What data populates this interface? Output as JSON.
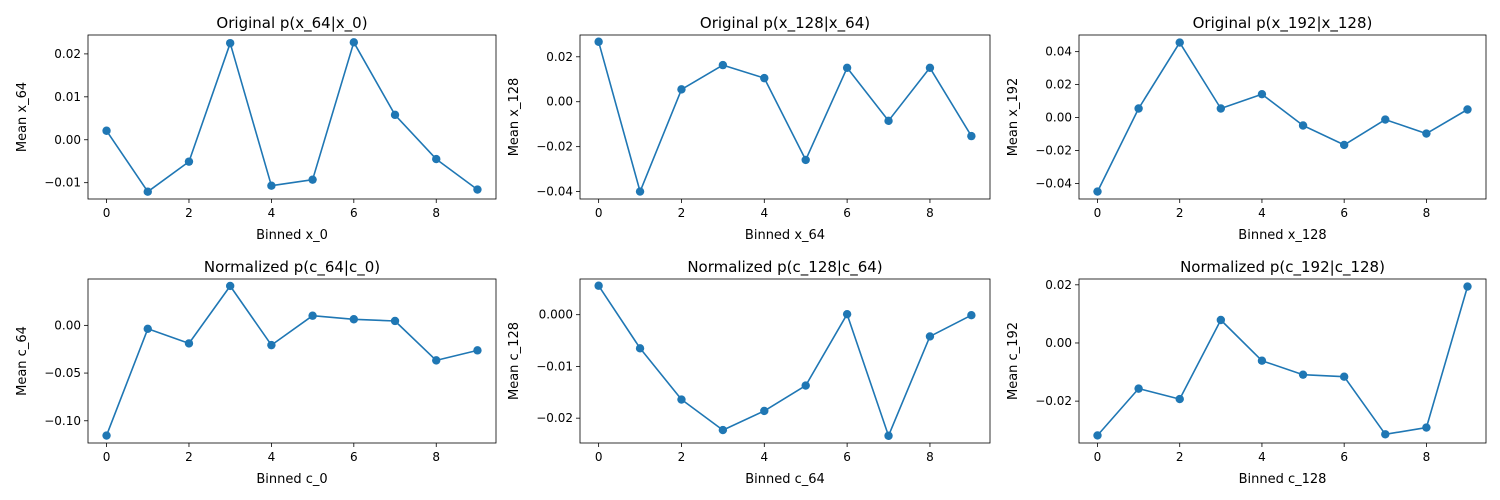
{
  "figure": {
    "color": "#1f77b4"
  },
  "chart_data": [
    {
      "type": "line",
      "title": "Original p(x_64|x_0)",
      "xlabel": "Binned x_0",
      "ylabel": "Mean x_64",
      "x": [
        0,
        1,
        2,
        3,
        4,
        5,
        6,
        7,
        8,
        9
      ],
      "values": [
        0.0021,
        -0.0121,
        -0.0051,
        0.0225,
        -0.0107,
        -0.0093,
        0.0227,
        0.0058,
        -0.0045,
        -0.0116
      ],
      "xlim": [
        -0.45,
        9.45
      ],
      "ylim": [
        -0.0138,
        0.0244
      ],
      "xticks": [
        0,
        2,
        4,
        6,
        8
      ],
      "xtick_labels": [
        "0",
        "2",
        "4",
        "6",
        "8"
      ],
      "yticks": [
        -0.01,
        0.0,
        0.01,
        0.02
      ],
      "ytick_labels": [
        "−0.01",
        "0.00",
        "0.01",
        "0.02"
      ],
      "grid": false
    },
    {
      "type": "line",
      "title": "Original p(x_128|x_64)",
      "xlabel": "Binned x_64",
      "ylabel": "Mean x_128",
      "x": [
        0,
        1,
        2,
        3,
        4,
        5,
        6,
        7,
        8,
        9
      ],
      "values": [
        0.0267,
        -0.04,
        0.0055,
        0.0163,
        0.0105,
        -0.0259,
        0.0151,
        -0.0085,
        0.0151,
        -0.0153
      ],
      "xlim": [
        -0.45,
        9.45
      ],
      "ylim": [
        -0.0433,
        0.0297
      ],
      "xticks": [
        0,
        2,
        4,
        6,
        8
      ],
      "xtick_labels": [
        "0",
        "2",
        "4",
        "6",
        "8"
      ],
      "yticks": [
        -0.04,
        -0.02,
        0.0,
        0.02
      ],
      "ytick_labels": [
        "−0.04",
        "−0.02",
        "0.00",
        "0.02"
      ],
      "grid": false
    },
    {
      "type": "line",
      "title": "Original p(x_192|x_128)",
      "xlabel": "Binned x_128",
      "ylabel": "Mean x_192",
      "x": [
        0,
        1,
        2,
        3,
        4,
        5,
        6,
        7,
        8,
        9
      ],
      "values": [
        -0.0449,
        0.0055,
        0.0455,
        0.0055,
        0.0142,
        -0.0048,
        -0.0166,
        -0.0012,
        -0.0097,
        0.0049
      ],
      "xlim": [
        -0.45,
        9.45
      ],
      "ylim": [
        -0.0494,
        0.0501
      ],
      "xticks": [
        0,
        2,
        4,
        6,
        8
      ],
      "xtick_labels": [
        "0",
        "2",
        "4",
        "6",
        "8"
      ],
      "yticks": [
        -0.04,
        -0.02,
        0.0,
        0.02,
        0.04
      ],
      "ytick_labels": [
        "−0.04",
        "−0.02",
        "0.00",
        "0.02",
        "0.04"
      ],
      "grid": false
    },
    {
      "type": "line",
      "title": "Normalized p(c_64|c_0)",
      "xlabel": "Binned c_0",
      "ylabel": "Mean c_64",
      "x": [
        0,
        1,
        2,
        3,
        4,
        5,
        6,
        7,
        8,
        9
      ],
      "values": [
        -0.1155,
        -0.0036,
        -0.0189,
        0.0413,
        -0.0207,
        0.0101,
        0.0064,
        0.0046,
        -0.0367,
        -0.0262
      ],
      "xlim": [
        -0.45,
        9.45
      ],
      "ylim": [
        -0.1233,
        0.0486
      ],
      "xticks": [
        0,
        2,
        4,
        6,
        8
      ],
      "xtick_labels": [
        "0",
        "2",
        "4",
        "6",
        "8"
      ],
      "yticks": [
        -0.1,
        -0.05,
        0.0
      ],
      "ytick_labels": [
        "−0.10",
        "−0.05",
        "0.00"
      ],
      "grid": false
    },
    {
      "type": "line",
      "title": "Normalized p(c_128|c_64)",
      "xlabel": "Binned c_64",
      "ylabel": "Mean c_128",
      "x": [
        0,
        1,
        2,
        3,
        4,
        5,
        6,
        7,
        8,
        9
      ],
      "values": [
        0.0056,
        -0.0065,
        -0.0164,
        -0.0223,
        -0.0186,
        -0.0137,
        0.0001,
        -0.0234,
        -0.0042,
        -0.0001
      ],
      "xlim": [
        -0.45,
        9.45
      ],
      "ylim": [
        -0.0248,
        0.0069
      ],
      "xticks": [
        0,
        2,
        4,
        6,
        8
      ],
      "xtick_labels": [
        "0",
        "2",
        "4",
        "6",
        "8"
      ],
      "yticks": [
        -0.02,
        -0.01,
        0.0
      ],
      "ytick_labels": [
        "−0.02",
        "−0.01",
        "0.000"
      ],
      "grid": false
    },
    {
      "type": "line",
      "title": "Normalized p(c_192|c_128)",
      "xlabel": "Binned c_128",
      "ylabel": "Mean c_192",
      "x": [
        0,
        1,
        2,
        3,
        4,
        5,
        6,
        7,
        8,
        9
      ],
      "values": [
        -0.0318,
        -0.0157,
        -0.0193,
        0.0079,
        -0.0061,
        -0.0109,
        -0.0116,
        -0.0314,
        -0.0291,
        0.0194
      ],
      "xlim": [
        -0.45,
        9.45
      ],
      "ylim": [
        -0.0344,
        0.022
      ],
      "xticks": [
        0,
        2,
        4,
        6,
        8
      ],
      "xtick_labels": [
        "0",
        "2",
        "4",
        "6",
        "8"
      ],
      "yticks": [
        -0.02,
        0.0,
        0.02
      ],
      "ytick_labels": [
        "−0.02",
        "0.00",
        "0.02"
      ],
      "grid": false
    }
  ]
}
